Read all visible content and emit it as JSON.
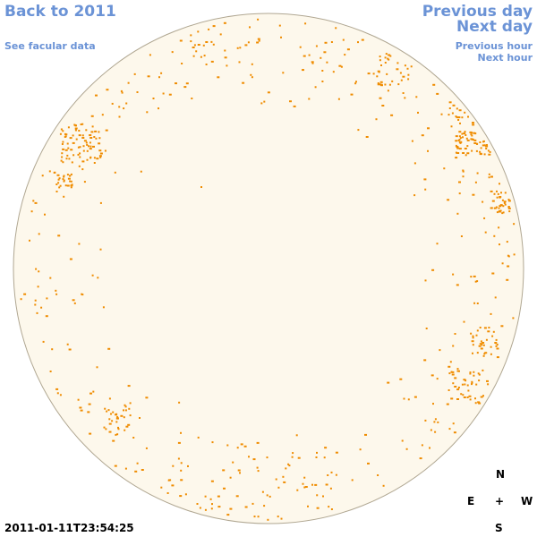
{
  "nav": {
    "back": "Back to 2011",
    "see_facular": "See facular data",
    "previous_day": "Previous day",
    "next_day": "Next day",
    "previous_hour": "Previous hour",
    "next_hour": "Next hour"
  },
  "compass": {
    "north": "N",
    "east": "E",
    "center": "+",
    "west": "W",
    "south": "S"
  },
  "timestamp": "2011-01-11T23:54:25",
  "colors": {
    "link": "#6b93d6",
    "disk_fill": "#fdf8ec",
    "disk_border": "#b0a792",
    "facula": "#ef8c00"
  }
}
